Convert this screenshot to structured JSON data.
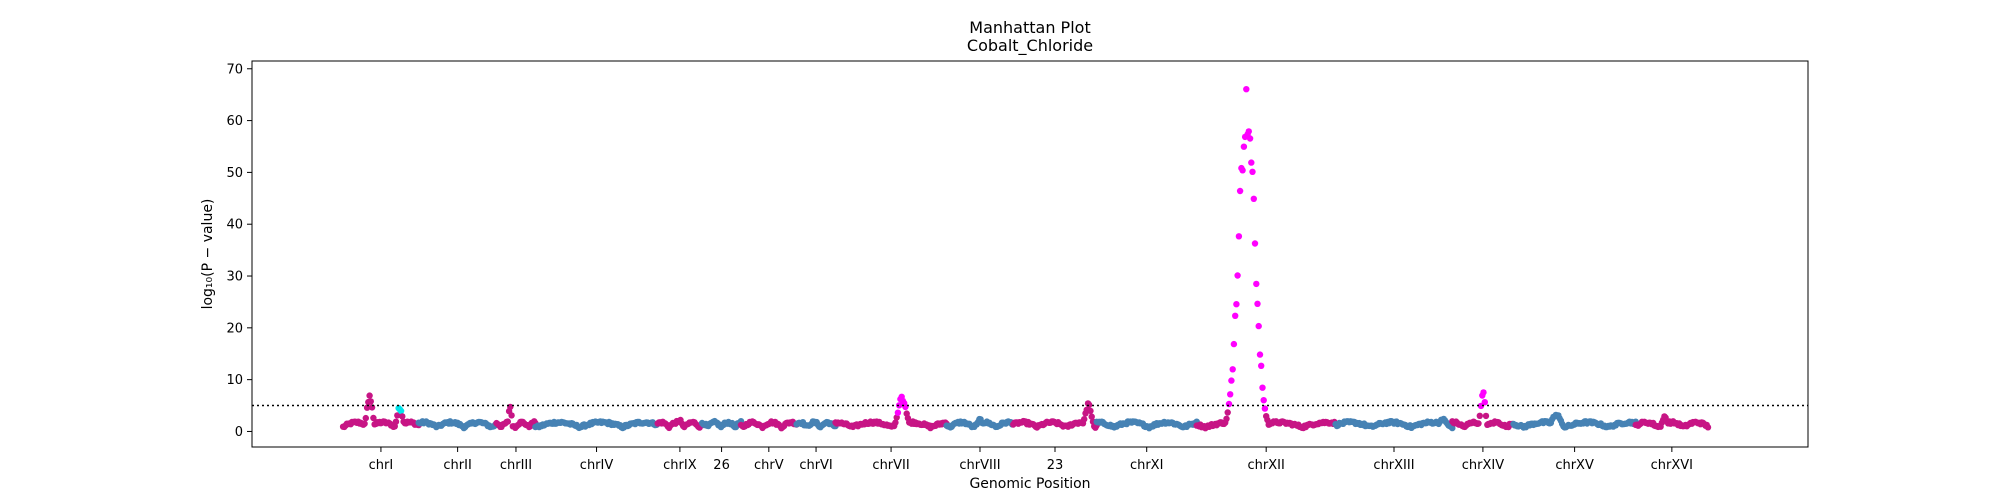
{
  "chart_data": {
    "type": "scatter",
    "title": "Manhattan Plot",
    "subtitle": "Cobalt_Chloride",
    "xlabel": "Genomic Position",
    "ylabel": "log₁₀(P − value)",
    "ylim": [
      -3,
      71.5
    ],
    "yticks": [
      0,
      10,
      20,
      30,
      40,
      50,
      60,
      70
    ],
    "grid": false,
    "threshold": 5,
    "colors": {
      "steelblue": "#4682b4",
      "mediumvioletred": "#c71585",
      "magenta": "#ff00ff",
      "cyan": "#00e5ee",
      "threshold": "#000000"
    },
    "xtick_labels": [
      "chrI",
      "chrII",
      "chrIII",
      "chrIV",
      "chrIX",
      "26",
      "chrV",
      "chrVI",
      "chrVII",
      "chrVIII",
      "23",
      "chrXI",
      "chrXII",
      "chrXIII",
      "chrXIV",
      "chrXV",
      "chrXVI"
    ],
    "segments": [
      {
        "label": "chrI",
        "start": 0.7,
        "end": 7.5,
        "base_color": "mediumvioletred",
        "peaks": [
          {
            "pos": 0.35,
            "height": 7,
            "color": "mediumvioletred"
          },
          {
            "pos": 0.75,
            "height": 5,
            "color": "cyan"
          }
        ]
      },
      {
        "label": "chrII",
        "start": 7.5,
        "end": 14.5,
        "base_color": "steelblue",
        "peaks": []
      },
      {
        "label": "chrIII",
        "start": 14.5,
        "end": 18.0,
        "base_color": "mediumvioletred",
        "peaks": [
          {
            "pos": 0.35,
            "height": 5.5,
            "color": "mediumvioletred"
          }
        ]
      },
      {
        "label": "chrIV",
        "start": 18.0,
        "end": 29.0,
        "base_color": "steelblue",
        "peaks": []
      },
      {
        "label": "chrIX",
        "start": 29.0,
        "end": 33.0,
        "base_color": "mediumvioletred",
        "peaks": [
          {
            "pos": 0.5,
            "height": 2.5,
            "color": "mediumvioletred"
          }
        ]
      },
      {
        "label": "26",
        "start": 33.0,
        "end": 36.5,
        "base_color": "steelblue",
        "peaks": []
      },
      {
        "label": "chrV",
        "start": 36.5,
        "end": 41.5,
        "base_color": "mediumvioletred",
        "peaks": []
      },
      {
        "label": "chrVI",
        "start": 41.5,
        "end": 45.0,
        "base_color": "steelblue",
        "peaks": []
      },
      {
        "label": "chrVII",
        "start": 45.0,
        "end": 55.0,
        "base_color": "mediumvioletred",
        "peaks": [
          {
            "pos": 0.6,
            "height": 7,
            "color": "magenta"
          }
        ]
      },
      {
        "label": "chrVIII",
        "start": 55.0,
        "end": 61.0,
        "base_color": "steelblue",
        "peaks": [
          {
            "pos": 0.5,
            "height": 2.5,
            "color": "steelblue"
          }
        ]
      },
      {
        "label": "23",
        "start": 61.0,
        "end": 68.5,
        "base_color": "mediumvioletred",
        "peaks": [
          {
            "pos": 0.9,
            "height": 5.5,
            "color": "mediumvioletred"
          }
        ]
      },
      {
        "label": "chrXI",
        "start": 68.5,
        "end": 77.5,
        "base_color": "steelblue",
        "peaks": []
      },
      {
        "label": "chrXII",
        "start": 77.5,
        "end": 90.0,
        "base_color": "mediumvioletred",
        "peaks": [
          {
            "pos": 0.36,
            "height": 67,
            "color": "magenta"
          }
        ]
      },
      {
        "label": "chrXIII",
        "start": 90.0,
        "end": 100.5,
        "base_color": "steelblue",
        "peaks": [
          {
            "pos": 0.92,
            "height": 2.5,
            "color": "steelblue"
          }
        ]
      },
      {
        "label": "chrXIV",
        "start": 100.5,
        "end": 106.0,
        "base_color": "mediumvioletred",
        "peaks": [
          {
            "pos": 0.5,
            "height": 8,
            "color": "magenta"
          }
        ]
      },
      {
        "label": "chrXV",
        "start": 106.0,
        "end": 117.0,
        "base_color": "steelblue",
        "peaks": [
          {
            "pos": 0.35,
            "height": 3.5,
            "color": "steelblue"
          }
        ]
      },
      {
        "label": "chrXVI",
        "start": 117.0,
        "end": 123.5,
        "base_color": "mediumvioletred",
        "peaks": [
          {
            "pos": 0.4,
            "height": 3,
            "color": "mediumvioletred"
          }
        ]
      }
    ],
    "xlim": [
      -7.5,
      132.5
    ]
  }
}
